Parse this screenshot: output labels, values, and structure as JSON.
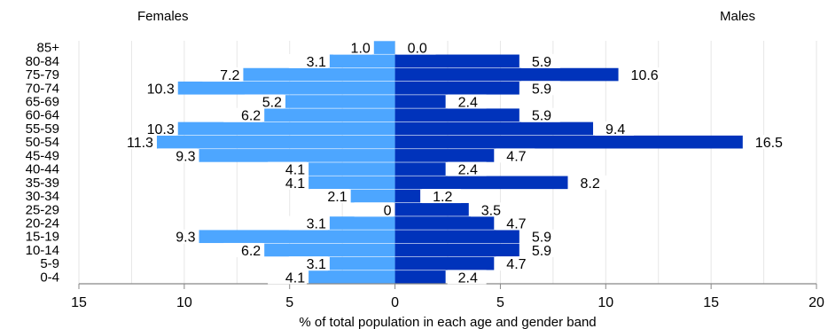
{
  "chart_data": {
    "type": "bar",
    "orientation": "horizontal",
    "title": "",
    "left_header": "Females",
    "right_header": "Males",
    "xlabel": "% of total population in each age and gender band",
    "ylabel": "",
    "xlim": [
      -15,
      20
    ],
    "x_ticks": [
      -15,
      -10,
      -5,
      0,
      5,
      10,
      15,
      20
    ],
    "x_tick_labels": [
      "15",
      "10",
      "5",
      "0",
      "5",
      "10",
      "15",
      "20"
    ],
    "grid": true,
    "categories": [
      "85+",
      "80-84",
      "75-79",
      "70-74",
      "65-69",
      "60-64",
      "55-59",
      "50-54",
      "45-49",
      "40-44",
      "35-39",
      "30-34",
      "25-29",
      "20-24",
      "15-19",
      "10-14",
      "5-9",
      "0-4"
    ],
    "series": [
      {
        "name": "Females",
        "color": "#4da6ff",
        "values": [
          1.0,
          3.1,
          7.2,
          10.3,
          5.2,
          6.2,
          10.3,
          11.3,
          9.3,
          4.1,
          4.1,
          2.1,
          0,
          3.1,
          9.3,
          6.2,
          3.1,
          4.1
        ],
        "labels": [
          "1.0",
          "3.1",
          "7.2",
          "10.3",
          "5.2",
          "6.2",
          "10.3",
          "11.3",
          "9.3",
          "4.1",
          "4.1",
          "2.1",
          "0",
          "3.1",
          "9.3",
          "6.2",
          "3.1",
          "4.1"
        ]
      },
      {
        "name": "Males",
        "color": "#0033bb",
        "values": [
          0.0,
          5.9,
          10.6,
          5.9,
          2.4,
          5.9,
          9.4,
          16.5,
          4.7,
          2.4,
          8.2,
          1.2,
          3.5,
          4.7,
          5.9,
          5.9,
          4.7,
          2.4
        ],
        "labels": [
          "0.0",
          "5.9",
          "10.6",
          "5.9",
          "2.4",
          "5.9",
          "9.4",
          "16.5",
          "4.7",
          "2.4",
          "8.2",
          "1.2",
          "3.5",
          "4.7",
          "5.9",
          "5.9",
          "4.7",
          "2.4"
        ]
      }
    ]
  }
}
